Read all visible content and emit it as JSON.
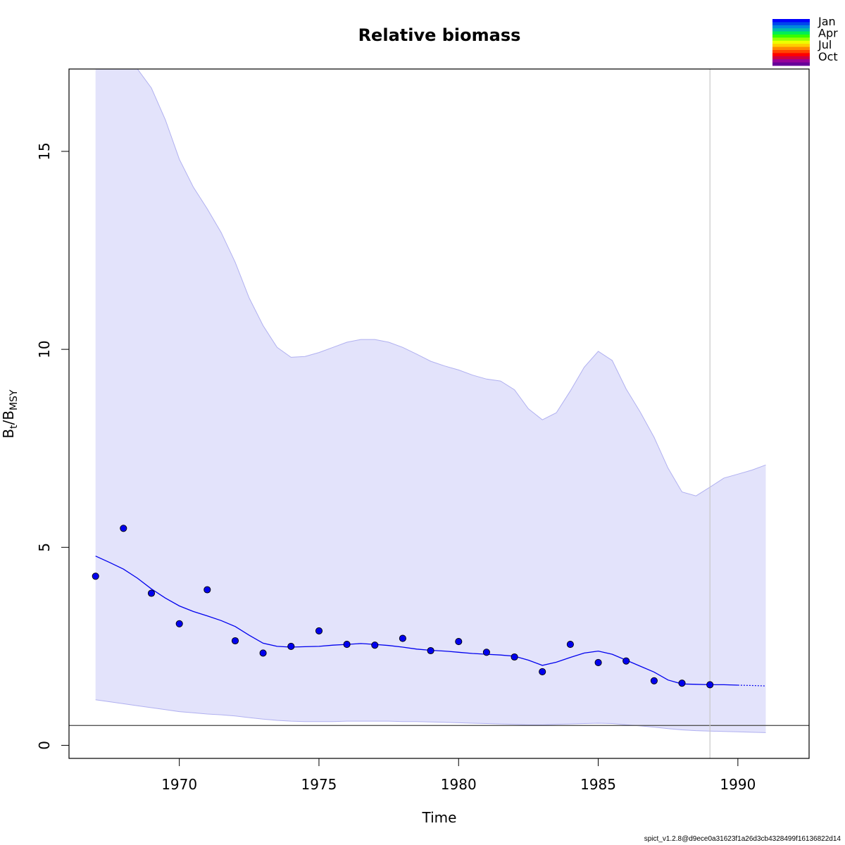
{
  "chart_data": {
    "type": "line",
    "title": "Relative biomass",
    "xlabel": "Time",
    "ylabel": {
      "base": "B",
      "sub": "t",
      "sep": "/",
      "base2": "B",
      "sub2": "MSY"
    },
    "xlim": [
      1966.05,
      1992.55
    ],
    "ylim": [
      -0.33,
      17.08
    ],
    "x_ticks": [
      1970,
      1975,
      1980,
      1985,
      1990
    ],
    "y_ticks": [
      0,
      5,
      10,
      15
    ],
    "x_tick_labels": [
      "1970",
      "1975",
      "1980",
      "1985",
      "1990"
    ],
    "y_tick_labels": [
      "0",
      "5",
      "10",
      "15"
    ],
    "colors": {
      "band_fill": "#e3e3fb",
      "band_edge": "#b0b0f0",
      "line": "#0000ee",
      "point_fill": "#0000ee",
      "reference_line": "#555555",
      "vertical_marker": "#c8c8c8"
    },
    "reference_line_y": 0.5,
    "vertical_marker_x": 1989,
    "estimate": {
      "x": [
        1967,
        1967.5,
        1968,
        1968.5,
        1969,
        1969.5,
        1970,
        1970.5,
        1971,
        1971.5,
        1972,
        1972.5,
        1973,
        1973.5,
        1974,
        1974.5,
        1975,
        1975.5,
        1976,
        1976.5,
        1977,
        1977.5,
        1978,
        1978.5,
        1979,
        1979.5,
        1980,
        1980.5,
        1981,
        1981.5,
        1982,
        1982.5,
        1983,
        1983.5,
        1984,
        1984.5,
        1985,
        1985.5,
        1986,
        1986.5,
        1987,
        1987.5,
        1988,
        1988.5,
        1989,
        1989.5,
        1990
      ],
      "y": [
        4.78,
        4.62,
        4.45,
        4.22,
        3.95,
        3.72,
        3.52,
        3.38,
        3.27,
        3.15,
        3.0,
        2.78,
        2.58,
        2.5,
        2.48,
        2.49,
        2.5,
        2.53,
        2.55,
        2.57,
        2.55,
        2.52,
        2.48,
        2.43,
        2.4,
        2.38,
        2.35,
        2.32,
        2.3,
        2.28,
        2.25,
        2.15,
        2.02,
        2.1,
        2.22,
        2.33,
        2.38,
        2.3,
        2.15,
        2.0,
        1.85,
        1.65,
        1.55,
        1.54,
        1.53,
        1.53,
        1.52
      ]
    },
    "forecast": {
      "x": [
        1990,
        1990.5,
        1991
      ],
      "y": [
        1.52,
        1.51,
        1.5
      ]
    },
    "confidence_band": {
      "x": [
        1967,
        1968,
        1968.5,
        1969,
        1969.5,
        1970,
        1970.5,
        1971,
        1971.5,
        1972,
        1972.5,
        1973,
        1973.5,
        1974,
        1974.5,
        1975,
        1975.5,
        1976,
        1976.5,
        1977,
        1977.5,
        1978,
        1978.5,
        1979,
        1979.5,
        1980,
        1980.5,
        1981,
        1981.5,
        1982,
        1982.5,
        1983,
        1983.5,
        1984,
        1984.5,
        1985,
        1985.5,
        1986,
        1986.5,
        1987,
        1987.5,
        1988,
        1988.5,
        1989,
        1989.5,
        1990,
        1990.5,
        1991
      ],
      "upper": [
        17.08,
        17.08,
        17.08,
        16.6,
        15.8,
        14.8,
        14.1,
        13.55,
        12.95,
        12.2,
        11.3,
        10.6,
        10.05,
        9.8,
        9.82,
        9.92,
        10.05,
        10.18,
        10.25,
        10.25,
        10.18,
        10.05,
        9.88,
        9.7,
        9.58,
        9.48,
        9.35,
        9.25,
        9.2,
        8.98,
        8.5,
        8.22,
        8.4,
        8.95,
        9.55,
        9.95,
        9.72,
        9.0,
        8.42,
        7.78,
        7.0,
        6.4,
        6.3,
        6.52,
        6.75,
        6.85,
        6.95,
        7.08
      ],
      "lower": [
        1.15,
        1.05,
        1.0,
        0.95,
        0.9,
        0.85,
        0.82,
        0.79,
        0.77,
        0.74,
        0.7,
        0.66,
        0.63,
        0.61,
        0.6,
        0.6,
        0.6,
        0.61,
        0.61,
        0.61,
        0.61,
        0.6,
        0.6,
        0.59,
        0.58,
        0.57,
        0.56,
        0.55,
        0.54,
        0.53,
        0.52,
        0.52,
        0.53,
        0.54,
        0.55,
        0.56,
        0.55,
        0.52,
        0.49,
        0.46,
        0.42,
        0.39,
        0.37,
        0.36,
        0.35,
        0.34,
        0.33,
        0.32
      ]
    },
    "observations": {
      "x": [
        1967,
        1968,
        1969,
        1970,
        1971,
        1972,
        1973,
        1974,
        1975,
        1976,
        1977,
        1978,
        1979,
        1980,
        1981,
        1982,
        1983,
        1984,
        1985,
        1986,
        1987,
        1988,
        1989
      ],
      "y": [
        4.27,
        5.48,
        3.84,
        3.07,
        3.93,
        2.64,
        2.33,
        2.5,
        2.89,
        2.55,
        2.53,
        2.7,
        2.39,
        2.62,
        2.35,
        2.23,
        1.86,
        2.55,
        2.09,
        2.13,
        1.63,
        1.57,
        1.53
      ]
    },
    "legend": {
      "placement": "top-right",
      "labels": [
        "Jan",
        "Apr",
        "Jul",
        "Oct"
      ],
      "colors": [
        "#0000ff",
        "#0044ee",
        "#0088dd",
        "#00bbaa",
        "#00ee55",
        "#33ff00",
        "#99ff00",
        "#eeff00",
        "#ffcc00",
        "#ff8800",
        "#ff4400",
        "#ff0000",
        "#cc0044",
        "#990099",
        "#660099"
      ]
    }
  },
  "footer": {
    "version": "spict_v1.2.8@d9ece0a31623f1a26d3cb4328499f16136822d14"
  }
}
